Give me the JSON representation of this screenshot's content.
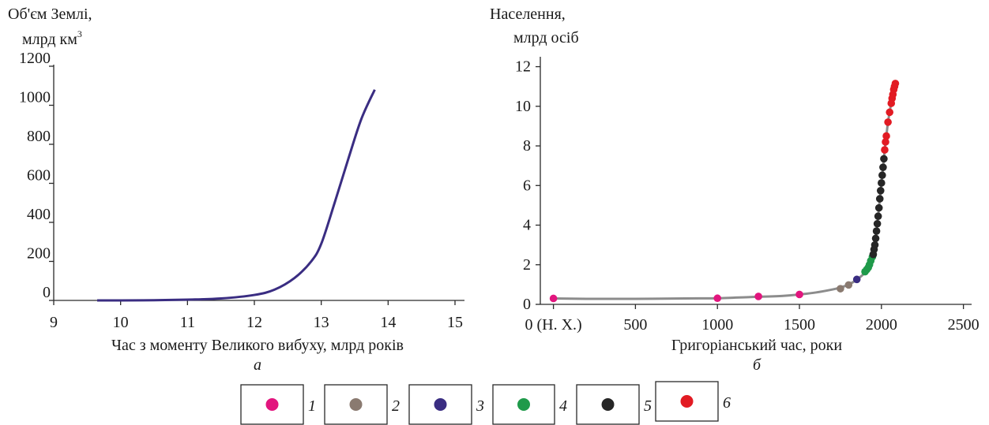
{
  "chart_data": [
    {
      "type": "line",
      "panel_label": "а",
      "ylabel_line1": "Об'єм Землі,",
      "ylabel_line2": "млрд км",
      "ylabel_sup": "3",
      "xlabel": "Час з моменту Великого вибуху, млрд років",
      "xlim": [
        9,
        15
      ],
      "ylim": [
        0,
        1200
      ],
      "xticks": [
        9,
        10,
        11,
        12,
        13,
        14,
        15
      ],
      "yticks": [
        0,
        200,
        400,
        600,
        800,
        1000,
        1200
      ],
      "series": [
        {
          "color": "#3a2d82",
          "x": [
            9.65,
            10.0,
            10.5,
            11.0,
            11.5,
            12.0,
            12.3,
            12.6,
            12.85,
            13.0,
            13.2,
            13.4,
            13.6,
            13.8
          ],
          "y": [
            0,
            0,
            1,
            4,
            10,
            28,
            55,
            115,
            200,
            290,
            500,
            720,
            930,
            1080
          ]
        }
      ]
    },
    {
      "type": "scatter",
      "panel_label": "б",
      "ylabel_line1": "Населення,",
      "ylabel_line2": "млрд осіб",
      "xlabel": "Григоріанський час, роки",
      "xlim": [
        -80,
        2550
      ],
      "ylim": [
        0,
        12.5
      ],
      "xticks": [
        {
          "value": 0,
          "label": "0 (Н. Х.)"
        },
        {
          "value": 500,
          "label": "500"
        },
        {
          "value": 1000,
          "label": "1000"
        },
        {
          "value": 1500,
          "label": "1500"
        },
        {
          "value": 2000,
          "label": "2000"
        },
        {
          "value": 2500,
          "label": "2500"
        }
      ],
      "yticks": [
        0,
        2,
        4,
        6,
        8,
        10,
        12
      ],
      "curve": {
        "color": "#8c8c8c",
        "x": [
          0,
          200,
          500,
          800,
          1000,
          1200,
          1400,
          1500,
          1600,
          1700,
          1750,
          1800,
          1850,
          1900,
          1920,
          1940,
          1950,
          1960,
          1970,
          1980,
          1990,
          2000,
          2010,
          2020,
          2030,
          2040,
          2050,
          2060,
          2070,
          2080
        ],
        "y": [
          0.3,
          0.28,
          0.28,
          0.3,
          0.31,
          0.37,
          0.43,
          0.5,
          0.6,
          0.75,
          0.85,
          1.0,
          1.25,
          1.6,
          1.9,
          2.3,
          2.55,
          3.0,
          3.7,
          4.45,
          5.3,
          6.1,
          6.9,
          7.8,
          8.5,
          9.2,
          9.7,
          10.2,
          10.7,
          11.2
        ]
      },
      "groups": [
        {
          "id": "1",
          "color": "#e2157e",
          "points": [
            [
              0,
              0.3
            ],
            [
              1000,
              0.31
            ],
            [
              1250,
              0.4
            ],
            [
              1500,
              0.5
            ]
          ]
        },
        {
          "id": "2",
          "color": "#8a7a70",
          "points": [
            [
              1750,
              0.79
            ],
            [
              1800,
              0.98
            ]
          ]
        },
        {
          "id": "3",
          "color": "#3a2d82",
          "points": [
            [
              1850,
              1.26
            ]
          ]
        },
        {
          "id": "4",
          "color": "#1f9a4a",
          "points": [
            [
              1900,
              1.65
            ],
            [
              1910,
              1.75
            ],
            [
              1920,
              1.86
            ],
            [
              1927,
              2.0
            ],
            [
              1935,
              2.2
            ],
            [
              1945,
              2.4
            ]
          ]
        },
        {
          "id": "5",
          "color": "#262626",
          "points": [
            [
              1950,
              2.52
            ],
            [
              1955,
              2.77
            ],
            [
              1960,
              3.0
            ],
            [
              1965,
              3.33
            ],
            [
              1970,
              3.7
            ],
            [
              1975,
              4.07
            ],
            [
              1980,
              4.45
            ],
            [
              1985,
              4.87
            ],
            [
              1990,
              5.33
            ],
            [
              1995,
              5.74
            ],
            [
              2000,
              6.13
            ],
            [
              2005,
              6.52
            ],
            [
              2010,
              6.92
            ],
            [
              2015,
              7.35
            ]
          ]
        },
        {
          "id": "6",
          "color": "#e21b23",
          "points": [
            [
              2020,
              7.8
            ],
            [
              2025,
              8.2
            ],
            [
              2030,
              8.5
            ],
            [
              2040,
              9.2
            ],
            [
              2050,
              9.7
            ],
            [
              2060,
              10.15
            ],
            [
              2065,
              10.4
            ],
            [
              2070,
              10.6
            ],
            [
              2075,
              10.85
            ],
            [
              2080,
              11.0
            ],
            [
              2085,
              11.15
            ]
          ]
        }
      ]
    }
  ],
  "legend": [
    {
      "id": "1",
      "color": "#e2157e"
    },
    {
      "id": "2",
      "color": "#8a7a70"
    },
    {
      "id": "3",
      "color": "#3a2d82"
    },
    {
      "id": "4",
      "color": "#1f9a4a"
    },
    {
      "id": "5",
      "color": "#262626"
    },
    {
      "id": "6",
      "color": "#e21b23"
    }
  ]
}
